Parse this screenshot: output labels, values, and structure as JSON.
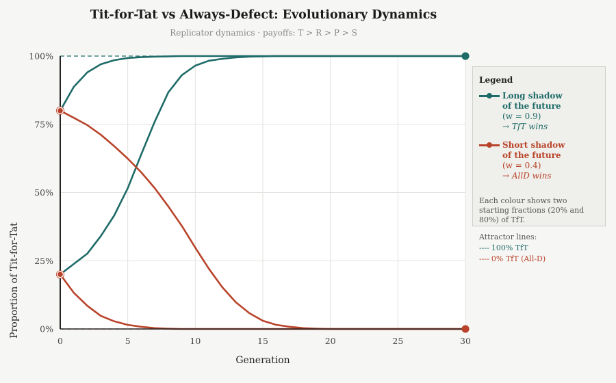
{
  "chart_data": {
    "type": "line",
    "title": "Tit-for-Tat vs Always-Defect: Evolutionary Dynamics",
    "subtitle": "Replicator dynamics  ·  payoffs: T > R > P > S",
    "xlabel": "Generation",
    "ylabel": "Proportion of Tit-for-Tat",
    "xlim": [
      0,
      30
    ],
    "ylim": [
      0,
      1
    ],
    "x_ticks": [
      0,
      5,
      10,
      15,
      20,
      25,
      30
    ],
    "x_tick_labels": [
      "0",
      "5",
      "10",
      "15",
      "20",
      "25",
      "30"
    ],
    "y_ticks": [
      0,
      0.25,
      0.5,
      0.75,
      1
    ],
    "y_tick_labels": [
      "0%",
      "25%",
      "50%",
      "75%",
      "100%"
    ],
    "grid": true,
    "legend_position": "right",
    "x": [
      0,
      1,
      2,
      3,
      4,
      5,
      6,
      7,
      8,
      9,
      10,
      11,
      12,
      13,
      14,
      15,
      16,
      17,
      18,
      19,
      20,
      21,
      22,
      23,
      24,
      25,
      26,
      27,
      28,
      29,
      30
    ],
    "series": [
      {
        "name": "Long shadow of the future (w = 0.9), start 80%",
        "group": "long",
        "color": "#1e6b68",
        "values": [
          0.8,
          0.887,
          0.94,
          0.97,
          0.985,
          0.993,
          0.996,
          0.998,
          0.999,
          1,
          1,
          1,
          1,
          1,
          1,
          1,
          1,
          1,
          1,
          1,
          1,
          1,
          1,
          1,
          1,
          1,
          1,
          1,
          1,
          1,
          1
        ]
      },
      {
        "name": "Long shadow of the future (w = 0.9), start 20%",
        "group": "long",
        "color": "#1e6b68",
        "values": [
          0.2,
          0.238,
          0.276,
          0.34,
          0.416,
          0.516,
          0.64,
          0.76,
          0.867,
          0.93,
          0.965,
          0.983,
          0.99,
          0.995,
          0.998,
          0.999,
          1,
          1,
          1,
          1,
          1,
          1,
          1,
          1,
          1,
          1,
          1,
          1,
          1,
          1,
          1
        ]
      },
      {
        "name": "Short shadow of the future (w = 0.4), start 80%",
        "group": "short",
        "color": "#b9432a",
        "values": [
          0.8,
          0.774,
          0.747,
          0.712,
          0.67,
          0.624,
          0.574,
          0.516,
          0.449,
          0.378,
          0.298,
          0.221,
          0.153,
          0.098,
          0.058,
          0.03,
          0.015,
          0.008,
          0.003,
          0.001,
          0,
          0,
          0,
          0,
          0,
          0,
          0,
          0,
          0,
          0,
          0
        ]
      },
      {
        "name": "Short shadow of the future (w = 0.4), start 20%",
        "group": "short",
        "color": "#b9432a",
        "values": [
          0.2,
          0.133,
          0.085,
          0.048,
          0.028,
          0.015,
          0.008,
          0.003,
          0.001,
          0,
          0,
          0,
          0,
          0,
          0,
          0,
          0,
          0,
          0,
          0,
          0,
          0,
          0,
          0,
          0,
          0,
          0,
          0,
          0,
          0,
          0
        ]
      }
    ],
    "reference_lines": [
      {
        "y": 1,
        "label": "100% TfT",
        "color": "#1e6b68",
        "style": "dashed"
      },
      {
        "y": 0,
        "label": "0% TfT (All-D)",
        "color": "#b9432a",
        "style": "dashed"
      }
    ]
  },
  "legend": {
    "title": "Legend",
    "entries": [
      {
        "name": "Long shadow of the future",
        "param": "(w = 0.9)",
        "outcome": "→ TfT wins",
        "color": "#1e6b68"
      },
      {
        "name": "Short shadow of the future",
        "param": "(w = 0.4)",
        "outcome": "→ AllD wins",
        "color": "#b9432a"
      }
    ],
    "note": "Each colour shows two starting fractions (20% and 80%) of TfT.",
    "attractor_heading": "Attractor lines:",
    "attractors": [
      {
        "dash": "----",
        "label": "100% TfT",
        "color": "#1e6b68"
      },
      {
        "dash": "----",
        "label": "0% TfT (All-D)",
        "color": "#b9432a"
      }
    ]
  }
}
